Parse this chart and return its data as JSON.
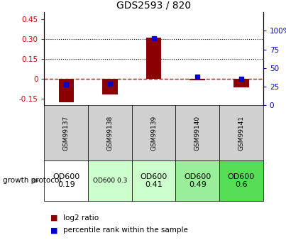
{
  "title": "GDS2593 / 820",
  "samples": [
    "GSM99137",
    "GSM99138",
    "GSM99139",
    "GSM99140",
    "GSM99141"
  ],
  "log2_ratio": [
    -0.175,
    -0.12,
    0.31,
    -0.01,
    -0.065
  ],
  "percentile_rank": [
    28,
    29,
    90,
    38,
    36
  ],
  "ylim_left": [
    -0.2,
    0.5
  ],
  "ylim_right": [
    0,
    125
  ],
  "yticks_left": [
    -0.15,
    0,
    0.15,
    0.3,
    0.45
  ],
  "yticks_right": [
    0,
    25,
    50,
    75,
    100
  ],
  "ytick_labels_left": [
    "-0.15",
    "0",
    "0.15",
    "0.30",
    "0.45"
  ],
  "ytick_labels_right": [
    "0",
    "25",
    "50",
    "75",
    "100%"
  ],
  "hlines": [
    0.15,
    0.3
  ],
  "bar_color": "#8B0000",
  "dot_color": "#0000CC",
  "zero_line_color": "#CC0000",
  "grid_color": "#000000",
  "protocol_labels": [
    "OD600\n0.19",
    "OD600 0.3",
    "OD600\n0.41",
    "OD600\n0.49",
    "OD600\n0.6"
  ],
  "protocol_colors": [
    "#ffffff",
    "#ccffcc",
    "#ccffcc",
    "#99ee99",
    "#55dd55"
  ],
  "protocol_fontsizes": [
    8,
    6.5,
    8,
    8,
    8
  ],
  "bar_color_hex": "#8B0000",
  "dot_color_hex": "#0000CC",
  "left_tick_color": "#CC0000",
  "right_tick_color": "#0000CC",
  "bar_width": 0.35
}
